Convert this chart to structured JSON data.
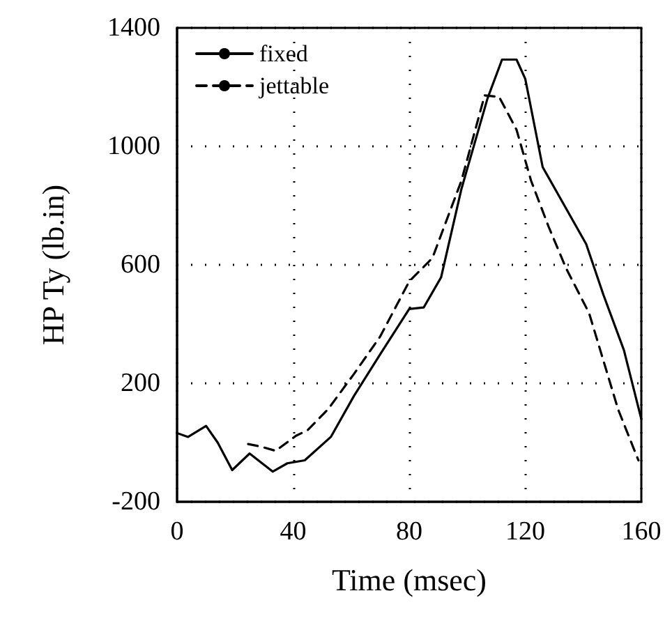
{
  "chart_data": {
    "type": "line",
    "xlabel": "Time (msec)",
    "ylabel": "HP Ty (lb.in)",
    "xlim": [
      0,
      160
    ],
    "xticks": [
      0,
      40,
      80,
      120,
      160
    ],
    "ylim": [
      -200,
      1400
    ],
    "yticks": [
      -200,
      200,
      600,
      1000,
      1400
    ],
    "grid": true,
    "legend": "top left",
    "marker": "none",
    "series": [
      {
        "name": "fixed",
        "color": "#000000",
        "line_style": "solid",
        "x": [
          0,
          3.8,
          10,
          14,
          19,
          25,
          33,
          38,
          44,
          53,
          61,
          70,
          80,
          85,
          91,
          98,
          107,
          112,
          117,
          120,
          126,
          133,
          141,
          147,
          154,
          160
        ],
        "values": [
          32,
          19,
          56,
          0,
          -93,
          -37,
          -98,
          -70,
          -60,
          19,
          158,
          298,
          451,
          456,
          558,
          856,
          1162,
          1293,
          1293,
          1228,
          930,
          809,
          670,
          497,
          312,
          79
        ]
      },
      {
        "name": "jettable",
        "color": "#000000",
        "line_style": "dashed",
        "x": [
          24.5,
          29,
          34,
          41,
          45,
          52,
          61,
          70,
          80,
          88,
          98,
          106,
          111,
          117,
          122,
          128,
          134,
          142,
          152,
          159
        ],
        "values": [
          -5,
          -14,
          -28,
          23,
          42,
          112,
          232,
          358,
          544,
          623,
          884,
          1172,
          1167,
          1056,
          884,
          730,
          590,
          437,
          112,
          -60
        ]
      }
    ]
  }
}
